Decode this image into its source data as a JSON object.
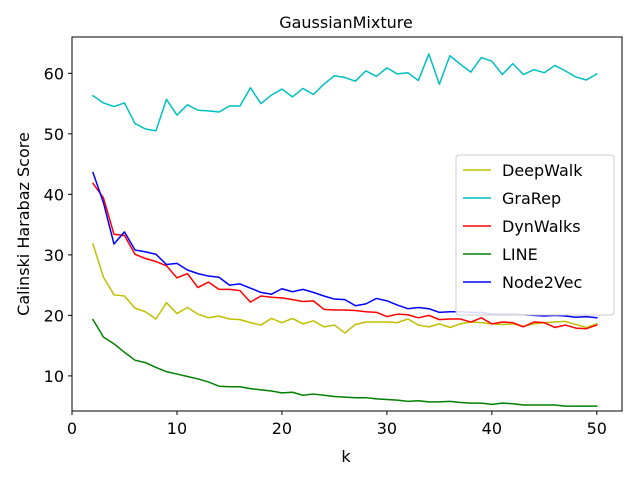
{
  "chart_data": {
    "type": "line",
    "title": "GaussianMixture",
    "xlabel": "k",
    "ylabel": "Calinski Harabaz Score",
    "xlim": [
      0,
      52.4
    ],
    "ylim": [
      4.2,
      66.0
    ],
    "xticks": [
      0,
      10,
      20,
      30,
      40,
      50
    ],
    "yticks": [
      10,
      20,
      30,
      40,
      50,
      60
    ],
    "grid": false,
    "legend_position": "center-right",
    "x": [
      2,
      3,
      4,
      5,
      6,
      7,
      8,
      9,
      10,
      11,
      12,
      13,
      14,
      15,
      16,
      17,
      18,
      19,
      20,
      21,
      22,
      23,
      24,
      25,
      26,
      27,
      28,
      29,
      30,
      31,
      32,
      33,
      34,
      35,
      36,
      37,
      38,
      39,
      40,
      41,
      42,
      43,
      44,
      45,
      46,
      47,
      48,
      49,
      50
    ],
    "series": [
      {
        "name": "DeepWalk",
        "color": "#bfbf00",
        "values": [
          31.8,
          26.3,
          23.4,
          23.2,
          21.2,
          20.6,
          19.4,
          22.1,
          20.3,
          21.3,
          20.2,
          19.6,
          19.9,
          19.4,
          19.3,
          18.8,
          18.4,
          19.5,
          18.8,
          19.5,
          18.6,
          19.1,
          18.1,
          18.4,
          17.1,
          18.5,
          18.9,
          18.9,
          18.9,
          18.8,
          19.4,
          18.4,
          18.1,
          18.6,
          18.0,
          18.6,
          18.9,
          18.8,
          18.6,
          18.5,
          18.6,
          18.2,
          18.6,
          18.8,
          18.9,
          19.0,
          18.5,
          18.0,
          18.6
        ]
      },
      {
        "name": "GraRep",
        "color": "#00bfbf",
        "values": [
          56.3,
          55.1,
          54.5,
          55.1,
          51.7,
          50.8,
          50.5,
          55.7,
          53.1,
          54.8,
          53.9,
          53.8,
          53.6,
          54.6,
          54.6,
          57.6,
          55.0,
          56.4,
          57.4,
          56.1,
          57.5,
          56.5,
          58.2,
          59.6,
          59.3,
          58.7,
          60.4,
          59.5,
          60.9,
          59.9,
          60.1,
          58.8,
          63.2,
          58.2,
          62.9,
          61.5,
          60.2,
          62.6,
          62.0,
          59.8,
          61.6,
          59.8,
          60.6,
          60.1,
          61.3,
          60.4,
          59.4,
          58.9,
          59.9
        ]
      },
      {
        "name": "DynWalks",
        "color": "#ff0000",
        "values": [
          41.8,
          39.4,
          33.4,
          33.2,
          30.1,
          29.4,
          28.9,
          28.2,
          26.2,
          26.9,
          24.6,
          25.5,
          24.3,
          24.3,
          24.1,
          22.2,
          23.2,
          23.0,
          22.9,
          22.6,
          22.3,
          22.4,
          21.0,
          20.9,
          20.9,
          20.8,
          20.6,
          20.5,
          19.8,
          20.2,
          20.1,
          19.6,
          20.0,
          19.3,
          19.4,
          19.4,
          18.9,
          19.6,
          18.6,
          18.9,
          18.8,
          18.1,
          18.9,
          18.8,
          18.0,
          18.4,
          17.9,
          17.8,
          18.4
        ]
      },
      {
        "name": "LINE",
        "color": "#008000",
        "values": [
          19.3,
          16.4,
          15.3,
          13.9,
          12.6,
          12.2,
          11.4,
          10.7,
          10.3,
          9.9,
          9.5,
          9.0,
          8.3,
          8.2,
          8.2,
          7.9,
          7.7,
          7.5,
          7.2,
          7.3,
          6.8,
          7.0,
          6.8,
          6.6,
          6.5,
          6.4,
          6.4,
          6.2,
          6.1,
          6.0,
          5.8,
          5.9,
          5.7,
          5.7,
          5.8,
          5.6,
          5.5,
          5.5,
          5.3,
          5.5,
          5.4,
          5.2,
          5.2,
          5.2,
          5.2,
          5.0,
          5.0,
          5.0,
          5.0
        ]
      },
      {
        "name": "Node2Vec",
        "color": "#0000ff",
        "values": [
          43.6,
          38.6,
          31.8,
          33.8,
          30.8,
          30.5,
          30.1,
          28.4,
          28.6,
          27.5,
          26.9,
          26.5,
          26.3,
          25.0,
          25.2,
          24.5,
          23.8,
          23.5,
          24.4,
          23.9,
          24.3,
          23.8,
          23.2,
          22.7,
          22.6,
          21.6,
          21.9,
          22.8,
          22.4,
          21.7,
          21.1,
          21.3,
          21.1,
          20.5,
          20.6,
          20.6,
          20.5,
          20.5,
          20.2,
          20.2,
          20.2,
          20.1,
          20.0,
          19.9,
          20.0,
          19.9,
          19.7,
          19.8,
          19.6
        ]
      }
    ]
  }
}
